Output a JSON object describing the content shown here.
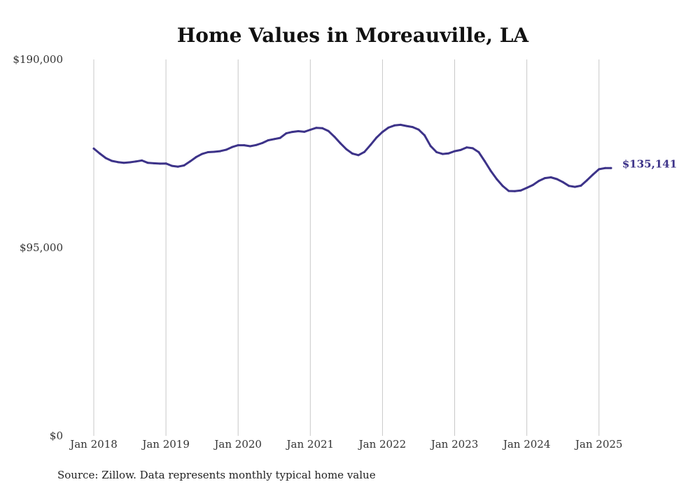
{
  "chart_data": {
    "type": "line",
    "title": "Home Values in Moreauville, LA",
    "xlabel": "",
    "ylabel": "",
    "ylim": [
      0,
      190000
    ],
    "y_ticks": [
      {
        "value": 0,
        "label": "$0"
      },
      {
        "value": 95000,
        "label": "$95,000"
      },
      {
        "value": 190000,
        "label": "$190,000"
      }
    ],
    "x_ticks": [
      {
        "value": "2018-01",
        "label": "Jan 2018"
      },
      {
        "value": "2019-01",
        "label": "Jan 2019"
      },
      {
        "value": "2020-01",
        "label": "Jan 2020"
      },
      {
        "value": "2021-01",
        "label": "Jan 2021"
      },
      {
        "value": "2022-01",
        "label": "Jan 2022"
      },
      {
        "value": "2023-01",
        "label": "Jan 2023"
      },
      {
        "value": "2024-01",
        "label": "Jan 2024"
      },
      {
        "value": "2025-01",
        "label": "Jan 2025"
      }
    ],
    "grid": {
      "vertical": true,
      "horizontal": false
    },
    "line_color": "#3d3389",
    "end_label": "$135,141",
    "series": [
      {
        "x": [
          "2018-01",
          "2018-02",
          "2018-03",
          "2018-04",
          "2018-05",
          "2018-06",
          "2018-07",
          "2018-08",
          "2018-09",
          "2018-10",
          "2018-11",
          "2018-12",
          "2019-01",
          "2019-02",
          "2019-03",
          "2019-04",
          "2019-05",
          "2019-06",
          "2019-07",
          "2019-08",
          "2019-09",
          "2019-10",
          "2019-11",
          "2019-12",
          "2020-01",
          "2020-02",
          "2020-03",
          "2020-04",
          "2020-05",
          "2020-06",
          "2020-07",
          "2020-08",
          "2020-09",
          "2020-10",
          "2020-11",
          "2020-12",
          "2021-01",
          "2021-02",
          "2021-03",
          "2021-04",
          "2021-05",
          "2021-06",
          "2021-07",
          "2021-08",
          "2021-09",
          "2021-10",
          "2021-11",
          "2021-12",
          "2022-01",
          "2022-02",
          "2022-03",
          "2022-04",
          "2022-05",
          "2022-06",
          "2022-07",
          "2022-08",
          "2022-09",
          "2022-10",
          "2022-11",
          "2022-12",
          "2023-01",
          "2023-02",
          "2023-03",
          "2023-04",
          "2023-05",
          "2023-06",
          "2023-07",
          "2023-08",
          "2023-09",
          "2023-10",
          "2023-11",
          "2023-12",
          "2024-01",
          "2024-02",
          "2024-03",
          "2024-04",
          "2024-05",
          "2024-06",
          "2024-07",
          "2024-08",
          "2024-09",
          "2024-10",
          "2024-11",
          "2024-12",
          "2025-01",
          "2025-02",
          "2025-03"
        ],
        "values": [
          145000,
          142500,
          140200,
          138800,
          138200,
          137800,
          138100,
          138500,
          139000,
          137800,
          137600,
          137400,
          137500,
          136300,
          135900,
          136500,
          138500,
          140700,
          142300,
          143200,
          143400,
          143700,
          144400,
          145800,
          146700,
          146700,
          146200,
          146800,
          147800,
          149200,
          149800,
          150400,
          152700,
          153400,
          153800,
          153500,
          154500,
          155500,
          155300,
          153900,
          151000,
          147700,
          144700,
          142500,
          141700,
          143300,
          146800,
          150500,
          153400,
          155600,
          156700,
          157000,
          156400,
          155900,
          154600,
          151700,
          146300,
          143200,
          142300,
          142600,
          143700,
          144300,
          145600,
          145200,
          143200,
          138600,
          133800,
          129600,
          126100,
          123600,
          123500,
          123900,
          125200,
          126600,
          128700,
          130100,
          130500,
          129600,
          128100,
          126200,
          125700,
          126300,
          129000,
          131900,
          134600,
          135141,
          135141
        ]
      }
    ]
  },
  "source": "Source: Zillow. Data represents monthly typical home value"
}
